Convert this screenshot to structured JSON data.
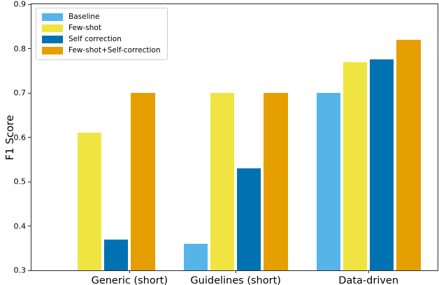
{
  "chart_data": {
    "type": "bar",
    "title": "",
    "xlabel": "",
    "ylabel": "F1 Score",
    "categories": [
      "Generic (short)",
      "Guidelines (short)",
      "Data-driven"
    ],
    "series": [
      {
        "name": "Baseline",
        "color": "#56B4E9",
        "values": [
          null,
          0.36,
          0.7
        ]
      },
      {
        "name": "Few-shot",
        "color": "#F0E442",
        "values": [
          0.61,
          0.7,
          0.77
        ]
      },
      {
        "name": "Self correction",
        "color": "#0072B2",
        "values": [
          0.37,
          0.53,
          0.775
        ]
      },
      {
        "name": "Few-shot+Self-correction",
        "color": "#E69F00",
        "values": [
          0.7,
          0.7,
          0.82
        ]
      }
    ],
    "ylim": [
      0.3,
      0.9
    ],
    "yticks": [
      "0.3",
      "0.4",
      "0.5",
      "0.6",
      "0.7",
      "0.8",
      "0.9"
    ],
    "grid": false,
    "legend_position": "upper left",
    "layout": {
      "group_centers_frac": [
        0.2415,
        0.5029,
        0.8299
      ],
      "slot_spacing_frac": 0.0656,
      "bar_width_frac": 0.0594,
      "slots_per_group": 4
    }
  }
}
